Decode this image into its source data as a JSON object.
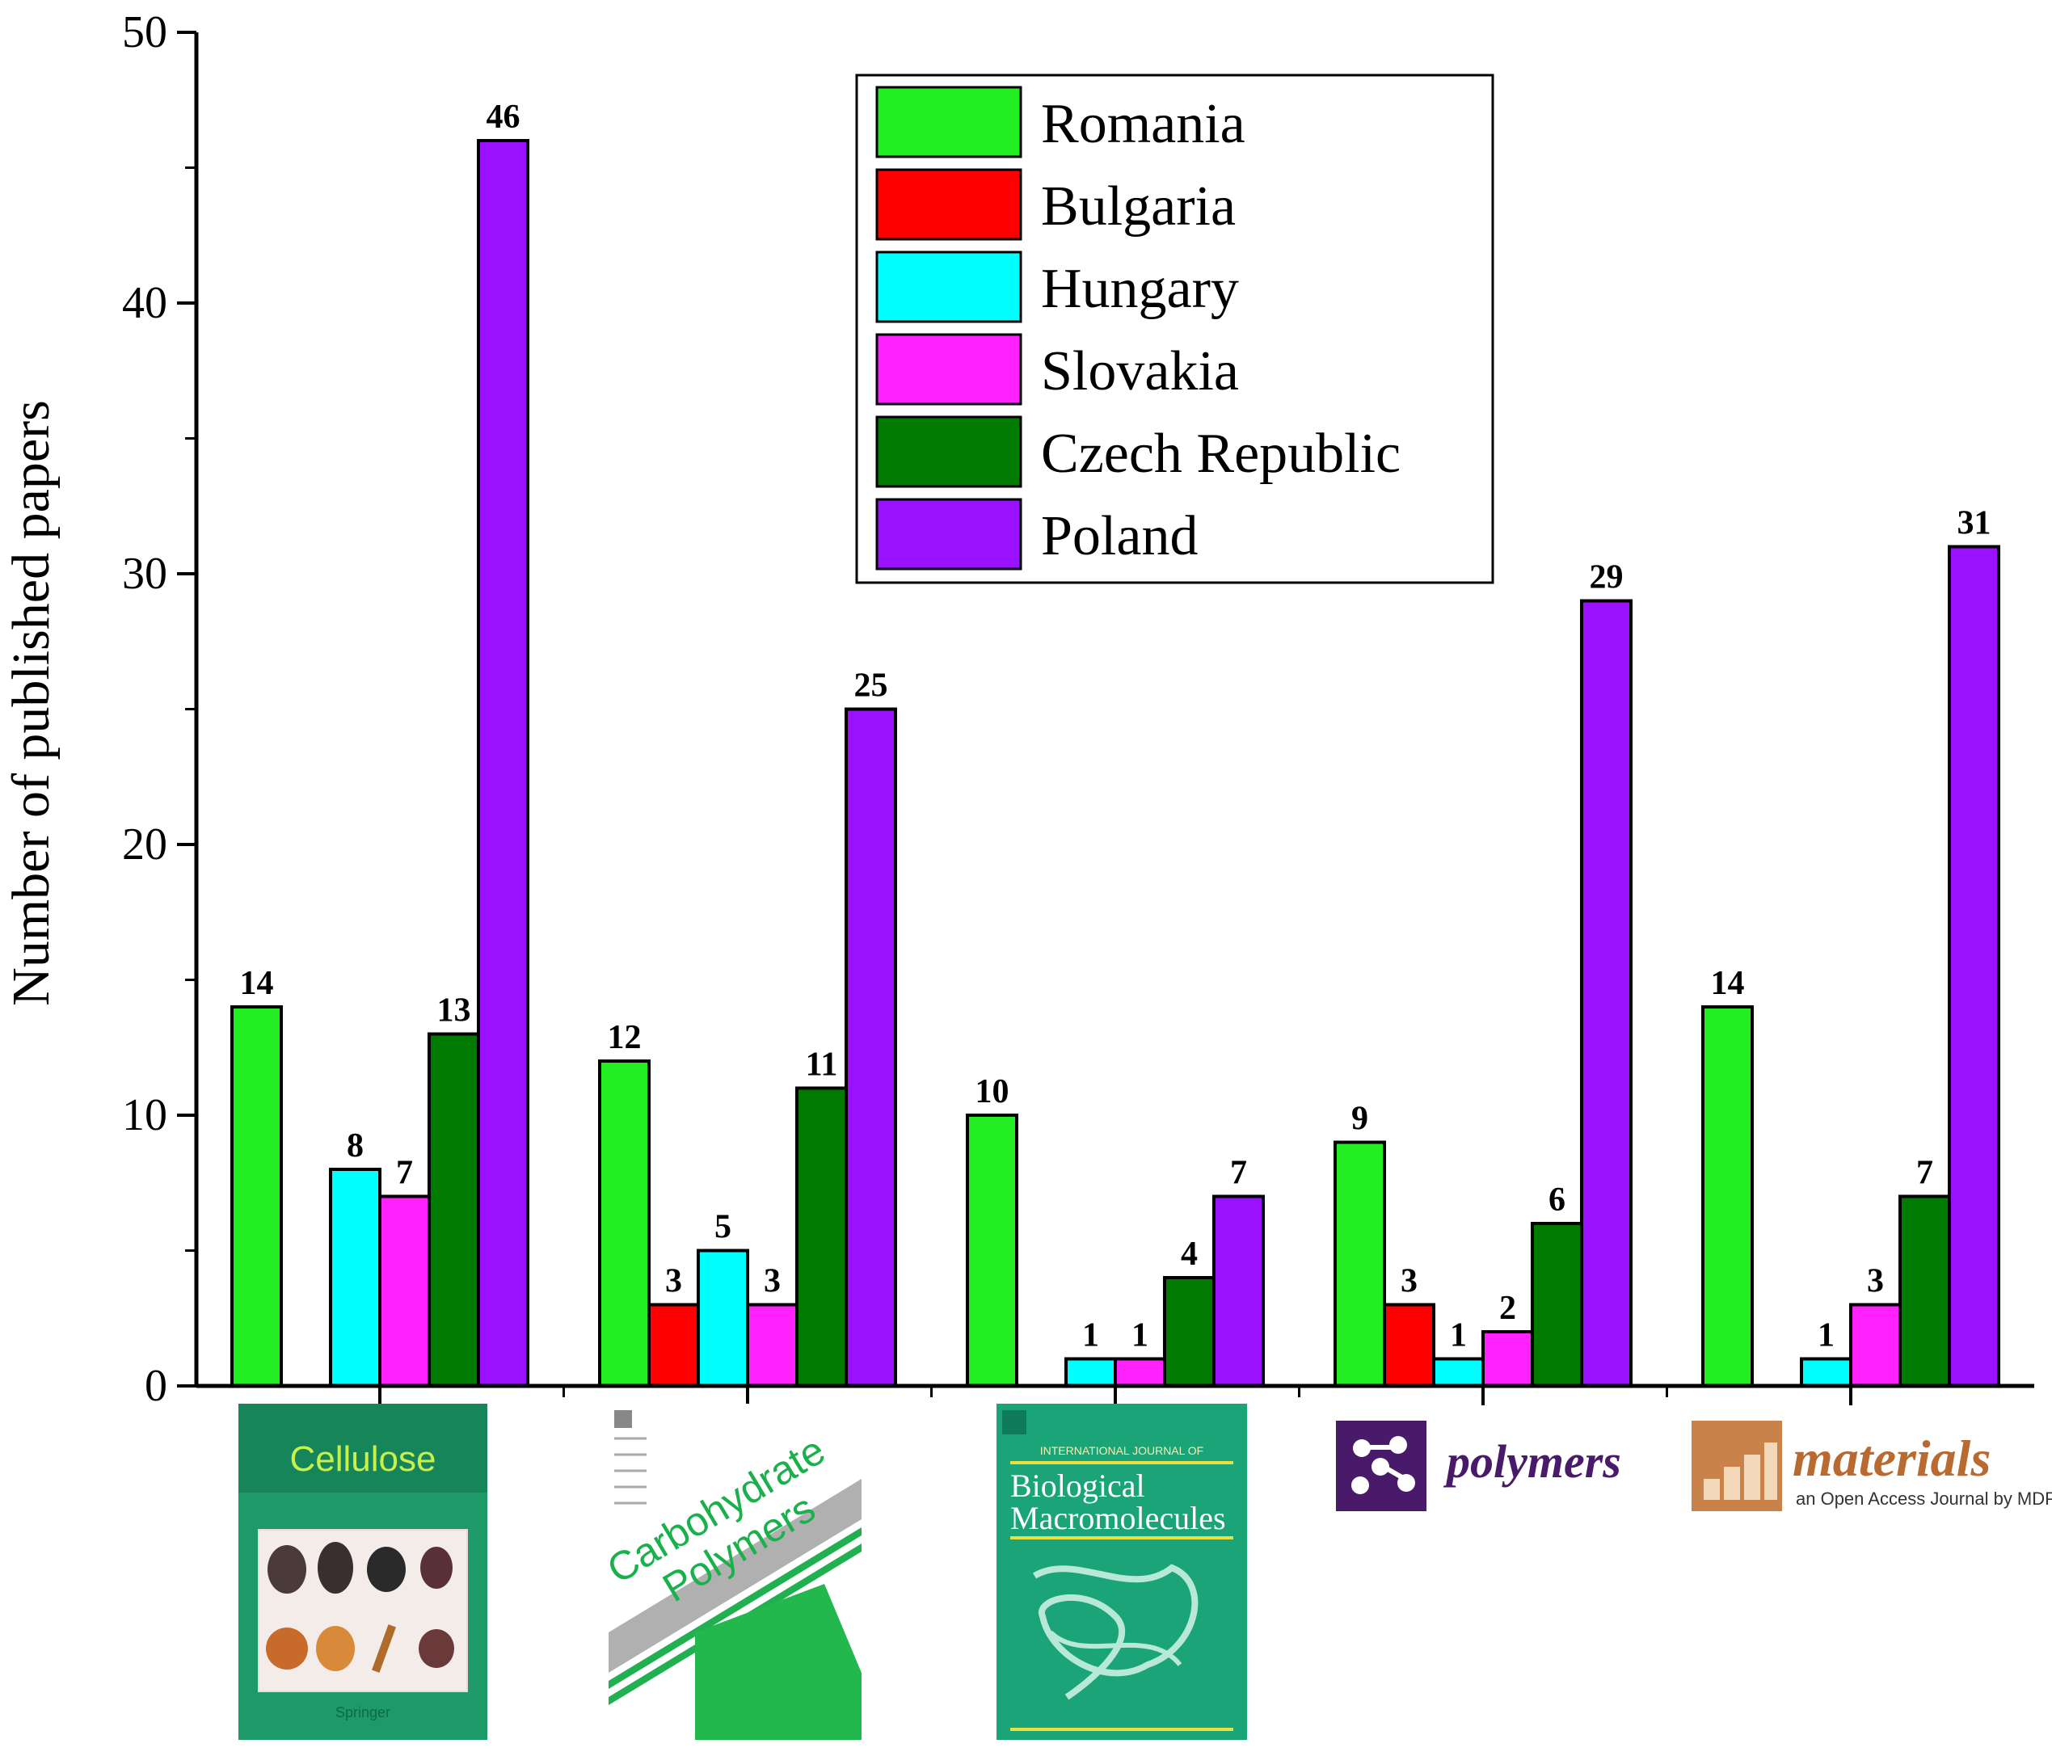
{
  "chart_data": {
    "type": "bar",
    "title": "",
    "xlabel": "",
    "ylabel": "Number of published papers",
    "ylim": [
      0,
      50
    ],
    "yticks": [
      0,
      10,
      20,
      30,
      40,
      50
    ],
    "grid": false,
    "legend_position": "top-center",
    "categories": [
      "Cellulose",
      "Carbohydrate Polymers",
      "Biological Macromolecules",
      "polymers",
      "materials"
    ],
    "series": [
      {
        "name": "Romania",
        "color": "#22ee22",
        "values": [
          14,
          12,
          10,
          9,
          14
        ]
      },
      {
        "name": "Bulgaria",
        "color": "#ff0000",
        "values": [
          0,
          3,
          0,
          3,
          0
        ]
      },
      {
        "name": "Hungary",
        "color": "#00ffff",
        "values": [
          8,
          5,
          1,
          1,
          1
        ]
      },
      {
        "name": "Slovakia",
        "color": "#ff22ff",
        "values": [
          7,
          3,
          1,
          2,
          3
        ]
      },
      {
        "name": "Czech Republic",
        "color": "#007a00",
        "values": [
          13,
          11,
          4,
          6,
          7
        ]
      },
      {
        "name": "Poland",
        "color": "#9a11ff",
        "values": [
          46,
          25,
          7,
          29,
          31
        ]
      }
    ]
  },
  "journal_logos": {
    "cellulose": {
      "title": "Cellulose"
    },
    "carbohydrate_polymers": {
      "title_line1": "Carbohydrate",
      "title_line2": "Polymers"
    },
    "biological_macromolecules": {
      "header": "INTERNATIONAL JOURNAL OF",
      "title_line1": "Biological",
      "title_line2": "Macromolecules"
    },
    "polymers": {
      "title": "polymers"
    },
    "materials": {
      "title": "materials",
      "subtitle": "an Open Access Journal by MDPI"
    }
  }
}
